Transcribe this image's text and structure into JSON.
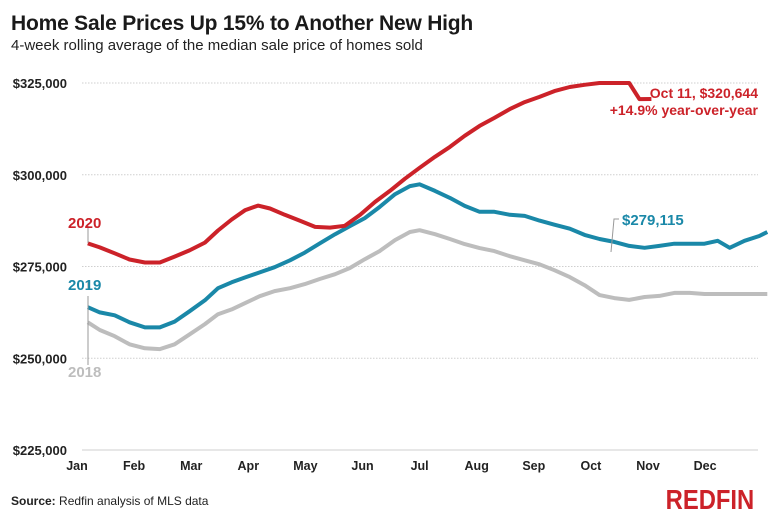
{
  "header": {
    "title": "Home Sale Prices Up 15% to Another New High",
    "subtitle": "4-week rolling average of the median sale price of homes sold"
  },
  "footer": {
    "source_label": "Source:",
    "source_text": " Redfin analysis of MLS data",
    "logo": "REDFIN"
  },
  "colors": {
    "2020": "#cc2229",
    "2019": "#1a88a8",
    "2018": "#bdbdbd",
    "grid": "#cfcfcf"
  },
  "chart_data": {
    "type": "line",
    "title": "Home Sale Prices Up 15% to Another New High",
    "subtitle": "4-week rolling average of the median sale price of homes sold",
    "xlabel": "",
    "ylabel": "",
    "x_ticks": [
      "Jan",
      "Feb",
      "Mar",
      "Apr",
      "May",
      "Jun",
      "Jul",
      "Aug",
      "Sep",
      "Oct",
      "Nov",
      "Dec"
    ],
    "y_ticks": [
      "$225,000",
      "$250,000",
      "$275,000",
      "$300,000",
      "$325,000"
    ],
    "y_tick_values": [
      225000,
      250000,
      275000,
      300000,
      325000
    ],
    "ylim": [
      225000,
      325000
    ],
    "xlim_months": [
      0,
      12.2
    ],
    "grid": "horizontal dotted",
    "legend": "inline labels at left",
    "x_unit": "month index (0 = start of Jan)",
    "series": [
      {
        "name": "2020",
        "label": "2020",
        "x": [
          0.19,
          0.4,
          0.66,
          0.92,
          1.19,
          1.45,
          1.71,
          1.97,
          2.24,
          2.47,
          2.71,
          2.94,
          3.17,
          3.38,
          3.64,
          3.9,
          4.17,
          4.43,
          4.69,
          4.96,
          5.22,
          5.48,
          5.74,
          6.0,
          6.27,
          6.53,
          6.79,
          7.05,
          7.31,
          7.58,
          7.84,
          8.1,
          8.36,
          8.63,
          8.89,
          9.15,
          9.41,
          9.67,
          9.85,
          10.06
        ],
        "values": [
          281300,
          280200,
          278600,
          276900,
          276100,
          276100,
          277700,
          279400,
          281500,
          284800,
          287800,
          290300,
          291600,
          290800,
          289100,
          287500,
          285800,
          285600,
          286100,
          289100,
          292600,
          295600,
          298900,
          301900,
          304900,
          307600,
          310600,
          313300,
          315500,
          317900,
          319800,
          321200,
          322800,
          323900,
          324500,
          325000,
          325000,
          325000,
          320600,
          320644
        ]
      },
      {
        "name": "2019",
        "label": "2019",
        "x": [
          0.19,
          0.4,
          0.66,
          0.92,
          1.19,
          1.45,
          1.71,
          1.97,
          2.24,
          2.47,
          2.71,
          2.94,
          3.2,
          3.46,
          3.73,
          3.99,
          4.25,
          4.52,
          4.78,
          5.04,
          5.3,
          5.57,
          5.83,
          6.0,
          6.27,
          6.53,
          6.79,
          7.05,
          7.31,
          7.58,
          7.84,
          8.1,
          8.36,
          8.63,
          8.89,
          9.15,
          9.41,
          9.67,
          9.94,
          10.2,
          10.46,
          10.73,
          10.99,
          11.22,
          11.43,
          11.69,
          11.95,
          12.09
        ],
        "values": [
          263900,
          262500,
          261700,
          259800,
          258400,
          258400,
          260000,
          262800,
          265800,
          269100,
          270700,
          272000,
          273400,
          274800,
          276700,
          278800,
          281300,
          283800,
          286000,
          288200,
          291200,
          294700,
          296900,
          297400,
          295600,
          293700,
          291500,
          289900,
          289900,
          289100,
          288800,
          287500,
          286400,
          285300,
          283600,
          282500,
          281700,
          280600,
          280100,
          280600,
          281200,
          281200,
          281200,
          282000,
          280100,
          282000,
          283300,
          284400
        ]
      },
      {
        "name": "2018",
        "label": "2018",
        "x": [
          0.19,
          0.4,
          0.66,
          0.92,
          1.19,
          1.45,
          1.71,
          1.97,
          2.24,
          2.47,
          2.71,
          2.94,
          3.2,
          3.46,
          3.73,
          3.99,
          4.25,
          4.52,
          4.78,
          5.04,
          5.3,
          5.57,
          5.83,
          6.0,
          6.27,
          6.53,
          6.79,
          7.05,
          7.31,
          7.58,
          7.84,
          8.1,
          8.36,
          8.63,
          8.89,
          9.15,
          9.41,
          9.67,
          9.94,
          10.2,
          10.46,
          10.73,
          10.99,
          11.22,
          11.43,
          11.69,
          12.09
        ],
        "values": [
          259800,
          257700,
          256000,
          253800,
          252700,
          252500,
          253800,
          256500,
          259300,
          262000,
          263300,
          265000,
          266900,
          268300,
          269100,
          270200,
          271600,
          272900,
          274600,
          277000,
          279200,
          282200,
          284400,
          284900,
          283800,
          282500,
          281100,
          280000,
          279200,
          277800,
          276700,
          275600,
          274000,
          272100,
          269900,
          267200,
          266400,
          265900,
          266700,
          267000,
          267800,
          267800,
          267500,
          267500,
          267500,
          267500,
          267500
        ]
      }
    ],
    "annotations": [
      {
        "series": "2020",
        "text_line1": "Oct 11, $320,644",
        "text_line2": "+14.9% year-over-year"
      },
      {
        "series": "2019",
        "text": "$279,115"
      }
    ]
  }
}
